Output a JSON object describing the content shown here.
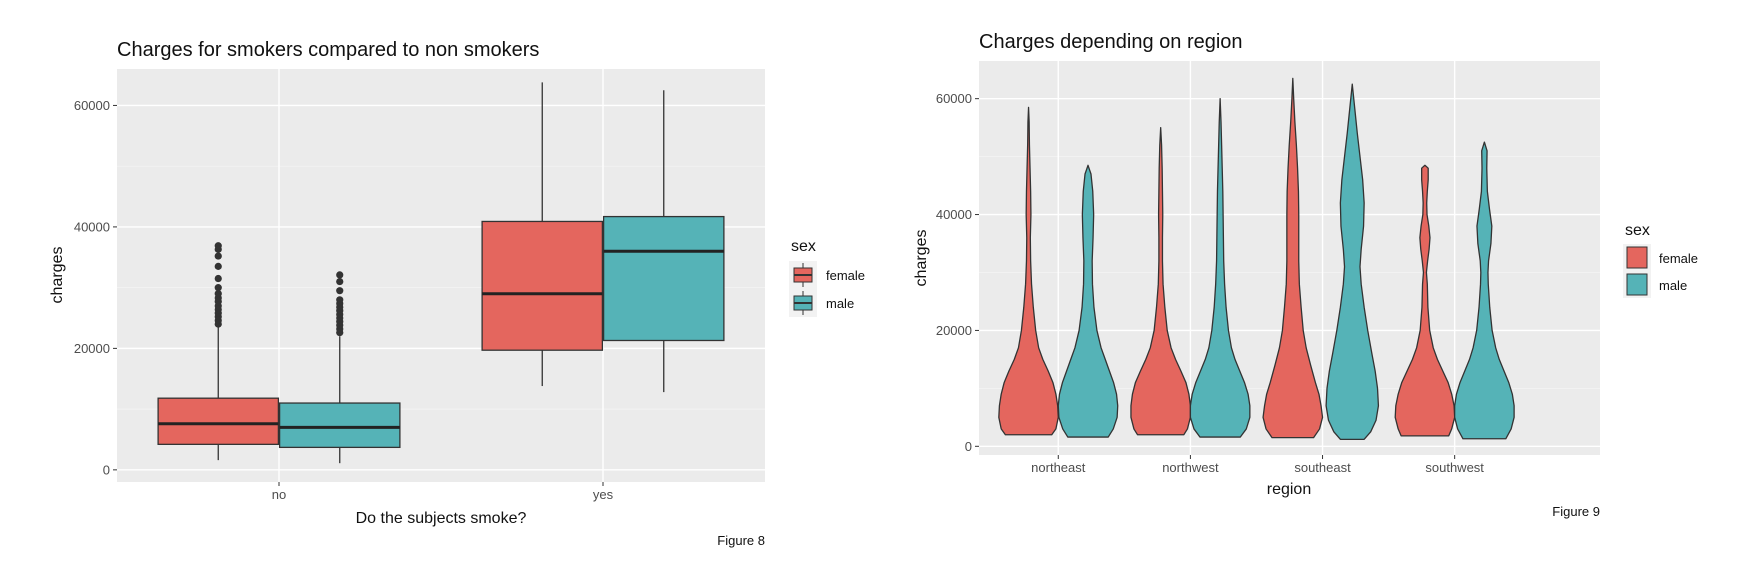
{
  "chart_data": [
    {
      "type": "boxplot",
      "title": "Charges for smokers compared to non smokers",
      "xlabel": "Do the subjects smoke?",
      "ylabel": "charges",
      "categories": [
        "no",
        "yes"
      ],
      "yticks": [
        0,
        20000,
        40000,
        60000
      ],
      "ylim": [
        -2000,
        66000
      ],
      "grid": true,
      "legend": {
        "title": "sex",
        "position": "right",
        "entries": [
          "female",
          "male"
        ]
      },
      "caption": "Figure 8",
      "series": [
        {
          "name": "female",
          "color": "#E4665E",
          "boxes": [
            {
              "category": "no",
              "whisker_low": 1600,
              "q1": 4200,
              "median": 7600,
              "q3": 11800,
              "whisker_high": 23500,
              "outliers": [
                24000,
                24600,
                25200,
                25800,
                26400,
                27000,
                27700,
                28300,
                29000,
                30000,
                31500,
                33500,
                35200,
                36300,
                36900
              ]
            },
            {
              "category": "yes",
              "whisker_low": 13800,
              "q1": 19700,
              "median": 29000,
              "q3": 40900,
              "whisker_high": 63800,
              "outliers": []
            }
          ]
        },
        {
          "name": "male",
          "color": "#55B3B7",
          "boxes": [
            {
              "category": "no",
              "whisker_low": 1100,
              "q1": 3700,
              "median": 7000,
              "q3": 11000,
              "whisker_high": 22000,
              "outliers": [
                22600,
                23200,
                23800,
                24400,
                25000,
                25600,
                26200,
                26800,
                27400,
                28000,
                29500,
                31000,
                32100
              ]
            },
            {
              "category": "yes",
              "whisker_low": 12800,
              "q1": 21300,
              "median": 36000,
              "q3": 41700,
              "whisker_high": 62500,
              "outliers": []
            }
          ]
        }
      ]
    },
    {
      "type": "violin",
      "title": "Charges depending on region",
      "xlabel": "region",
      "ylabel": "charges",
      "categories": [
        "northeast",
        "northwest",
        "southeast",
        "southwest"
      ],
      "yticks": [
        0,
        20000,
        40000,
        60000
      ],
      "ylim": [
        -1500,
        66500
      ],
      "grid": true,
      "legend": {
        "title": "sex",
        "position": "right",
        "entries": [
          "female",
          "male"
        ]
      },
      "caption": "Figure 9",
      "series": [
        {
          "name": "female",
          "color": "#E4665E",
          "violins": [
            {
              "category": "northeast",
              "ymin": 2000,
              "ymax": 58500,
              "profile": [
                [
                  2000,
                  0.78
                ],
                [
                  3000,
                  0.92
                ],
                [
                  5000,
                  1.0
                ],
                [
                  7000,
                  0.98
                ],
                [
                  9000,
                  0.92
                ],
                [
                  11000,
                  0.82
                ],
                [
                  13000,
                  0.66
                ],
                [
                  15000,
                  0.48
                ],
                [
                  17000,
                  0.34
                ],
                [
                  20000,
                  0.24
                ],
                [
                  24000,
                  0.16
                ],
                [
                  28000,
                  0.1
                ],
                [
                  32000,
                  0.07
                ],
                [
                  36000,
                  0.06
                ],
                [
                  40000,
                  0.08
                ],
                [
                  44000,
                  0.07
                ],
                [
                  48000,
                  0.05
                ],
                [
                  52000,
                  0.03
                ],
                [
                  56000,
                  0.02
                ],
                [
                  58500,
                  0.0
                ]
              ]
            },
            {
              "category": "northwest",
              "ymin": 2000,
              "ymax": 55000,
              "profile": [
                [
                  2000,
                  0.78
                ],
                [
                  3000,
                  0.9
                ],
                [
                  5000,
                  1.0
                ],
                [
                  7000,
                  1.0
                ],
                [
                  9000,
                  0.95
                ],
                [
                  11000,
                  0.85
                ],
                [
                  13000,
                  0.68
                ],
                [
                  15000,
                  0.5
                ],
                [
                  17000,
                  0.35
                ],
                [
                  20000,
                  0.22
                ],
                [
                  24000,
                  0.14
                ],
                [
                  28000,
                  0.08
                ],
                [
                  32000,
                  0.06
                ],
                [
                  36000,
                  0.06
                ],
                [
                  40000,
                  0.07
                ],
                [
                  44000,
                  0.06
                ],
                [
                  48000,
                  0.05
                ],
                [
                  52000,
                  0.03
                ],
                [
                  55000,
                  0.0
                ]
              ]
            },
            {
              "category": "southeast",
              "ymin": 1500,
              "ymax": 63500,
              "profile": [
                [
                  1500,
                  0.7
                ],
                [
                  3000,
                  0.9
                ],
                [
                  5000,
                  1.0
                ],
                [
                  7000,
                  0.95
                ],
                [
                  9000,
                  0.88
                ],
                [
                  11000,
                  0.76
                ],
                [
                  14000,
                  0.6
                ],
                [
                  17000,
                  0.45
                ],
                [
                  20000,
                  0.35
                ],
                [
                  24000,
                  0.28
                ],
                [
                  28000,
                  0.22
                ],
                [
                  32000,
                  0.2
                ],
                [
                  36000,
                  0.2
                ],
                [
                  40000,
                  0.2
                ],
                [
                  44000,
                  0.19
                ],
                [
                  48000,
                  0.16
                ],
                [
                  52000,
                  0.12
                ],
                [
                  56000,
                  0.07
                ],
                [
                  60000,
                  0.03
                ],
                [
                  63500,
                  0.0
                ]
              ]
            },
            {
              "category": "southwest",
              "ymin": 1800,
              "ymax": 48500,
              "profile": [
                [
                  1800,
                  0.8
                ],
                [
                  3000,
                  0.9
                ],
                [
                  5000,
                  1.0
                ],
                [
                  7000,
                  0.98
                ],
                [
                  9000,
                  0.9
                ],
                [
                  11000,
                  0.78
                ],
                [
                  13000,
                  0.6
                ],
                [
                  15000,
                  0.42
                ],
                [
                  17000,
                  0.28
                ],
                [
                  20000,
                  0.16
                ],
                [
                  24000,
                  0.1
                ],
                [
                  28000,
                  0.08
                ],
                [
                  30000,
                  0.05
                ],
                [
                  32000,
                  0.09
                ],
                [
                  34000,
                  0.14
                ],
                [
                  36000,
                  0.17
                ],
                [
                  38000,
                  0.13
                ],
                [
                  40000,
                  0.07
                ],
                [
                  42000,
                  0.06
                ],
                [
                  44000,
                  0.08
                ],
                [
                  46000,
                  0.11
                ],
                [
                  48000,
                  0.11
                ],
                [
                  48500,
                  0.0
                ]
              ]
            }
          ]
        },
        {
          "name": "male",
          "color": "#55B3B7",
          "violins": [
            {
              "category": "northeast",
              "ymin": 1600,
              "ymax": 48500,
              "profile": [
                [
                  1600,
                  0.68
                ],
                [
                  3000,
                  0.85
                ],
                [
                  5000,
                  0.98
                ],
                [
                  7000,
                  1.0
                ],
                [
                  9000,
                  0.96
                ],
                [
                  11000,
                  0.86
                ],
                [
                  13000,
                  0.72
                ],
                [
                  15000,
                  0.58
                ],
                [
                  17000,
                  0.44
                ],
                [
                  20000,
                  0.3
                ],
                [
                  24000,
                  0.2
                ],
                [
                  28000,
                  0.15
                ],
                [
                  32000,
                  0.14
                ],
                [
                  36000,
                  0.17
                ],
                [
                  40000,
                  0.19
                ],
                [
                  44000,
                  0.16
                ],
                [
                  47000,
                  0.1
                ],
                [
                  48500,
                  0.0
                ]
              ]
            },
            {
              "category": "northwest",
              "ymin": 1600,
              "ymax": 60000,
              "profile": [
                [
                  1600,
                  0.68
                ],
                [
                  3000,
                  0.88
                ],
                [
                  5000,
                  1.0
                ],
                [
                  7000,
                  1.0
                ],
                [
                  9000,
                  0.94
                ],
                [
                  11000,
                  0.82
                ],
                [
                  13000,
                  0.66
                ],
                [
                  15000,
                  0.5
                ],
                [
                  17000,
                  0.38
                ],
                [
                  20000,
                  0.28
                ],
                [
                  24000,
                  0.2
                ],
                [
                  28000,
                  0.15
                ],
                [
                  32000,
                  0.12
                ],
                [
                  36000,
                  0.11
                ],
                [
                  40000,
                  0.1
                ],
                [
                  44000,
                  0.09
                ],
                [
                  48000,
                  0.07
                ],
                [
                  52000,
                  0.05
                ],
                [
                  56000,
                  0.03
                ],
                [
                  60000,
                  0.0
                ]
              ]
            },
            {
              "category": "southeast",
              "ymin": 1200,
              "ymax": 62500,
              "profile": [
                [
                  1200,
                  0.4
                ],
                [
                  2500,
                  0.62
                ],
                [
                  4500,
                  0.8
                ],
                [
                  7000,
                  0.88
                ],
                [
                  10000,
                  0.85
                ],
                [
                  13000,
                  0.77
                ],
                [
                  16000,
                  0.66
                ],
                [
                  20000,
                  0.52
                ],
                [
                  24000,
                  0.4
                ],
                [
                  28000,
                  0.3
                ],
                [
                  31000,
                  0.26
                ],
                [
                  34000,
                  0.3
                ],
                [
                  38000,
                  0.38
                ],
                [
                  42000,
                  0.4
                ],
                [
                  46000,
                  0.35
                ],
                [
                  50000,
                  0.26
                ],
                [
                  54000,
                  0.17
                ],
                [
                  58000,
                  0.09
                ],
                [
                  62500,
                  0.0
                ]
              ]
            },
            {
              "category": "southwest",
              "ymin": 1300,
              "ymax": 52500,
              "profile": [
                [
                  1300,
                  0.72
                ],
                [
                  3000,
                  0.9
                ],
                [
                  5000,
                  1.0
                ],
                [
                  7000,
                  1.0
                ],
                [
                  9000,
                  0.94
                ],
                [
                  11000,
                  0.82
                ],
                [
                  13000,
                  0.66
                ],
                [
                  15000,
                  0.5
                ],
                [
                  17000,
                  0.38
                ],
                [
                  20000,
                  0.26
                ],
                [
                  24000,
                  0.18
                ],
                [
                  28000,
                  0.13
                ],
                [
                  30000,
                  0.12
                ],
                [
                  32000,
                  0.14
                ],
                [
                  35000,
                  0.22
                ],
                [
                  38000,
                  0.25
                ],
                [
                  41000,
                  0.17
                ],
                [
                  44000,
                  0.1
                ],
                [
                  48000,
                  0.08
                ],
                [
                  51000,
                  0.09
                ],
                [
                  52500,
                  0.0
                ]
              ]
            }
          ]
        }
      ]
    }
  ]
}
